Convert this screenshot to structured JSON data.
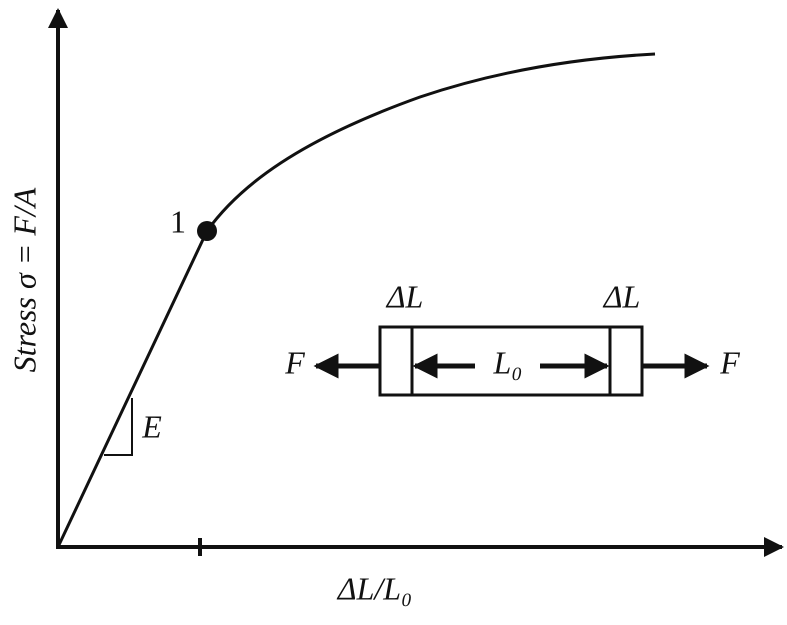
{
  "axes": {
    "y_label": "Stress σ = F/A",
    "x_label": "ΔL/L₀"
  },
  "curve": {
    "point_label": "1",
    "slope_label": "E"
  },
  "specimen": {
    "left_extension": "ΔL",
    "right_extension": "ΔL",
    "length": "L₀",
    "left_force": "F",
    "right_force": "F"
  }
}
